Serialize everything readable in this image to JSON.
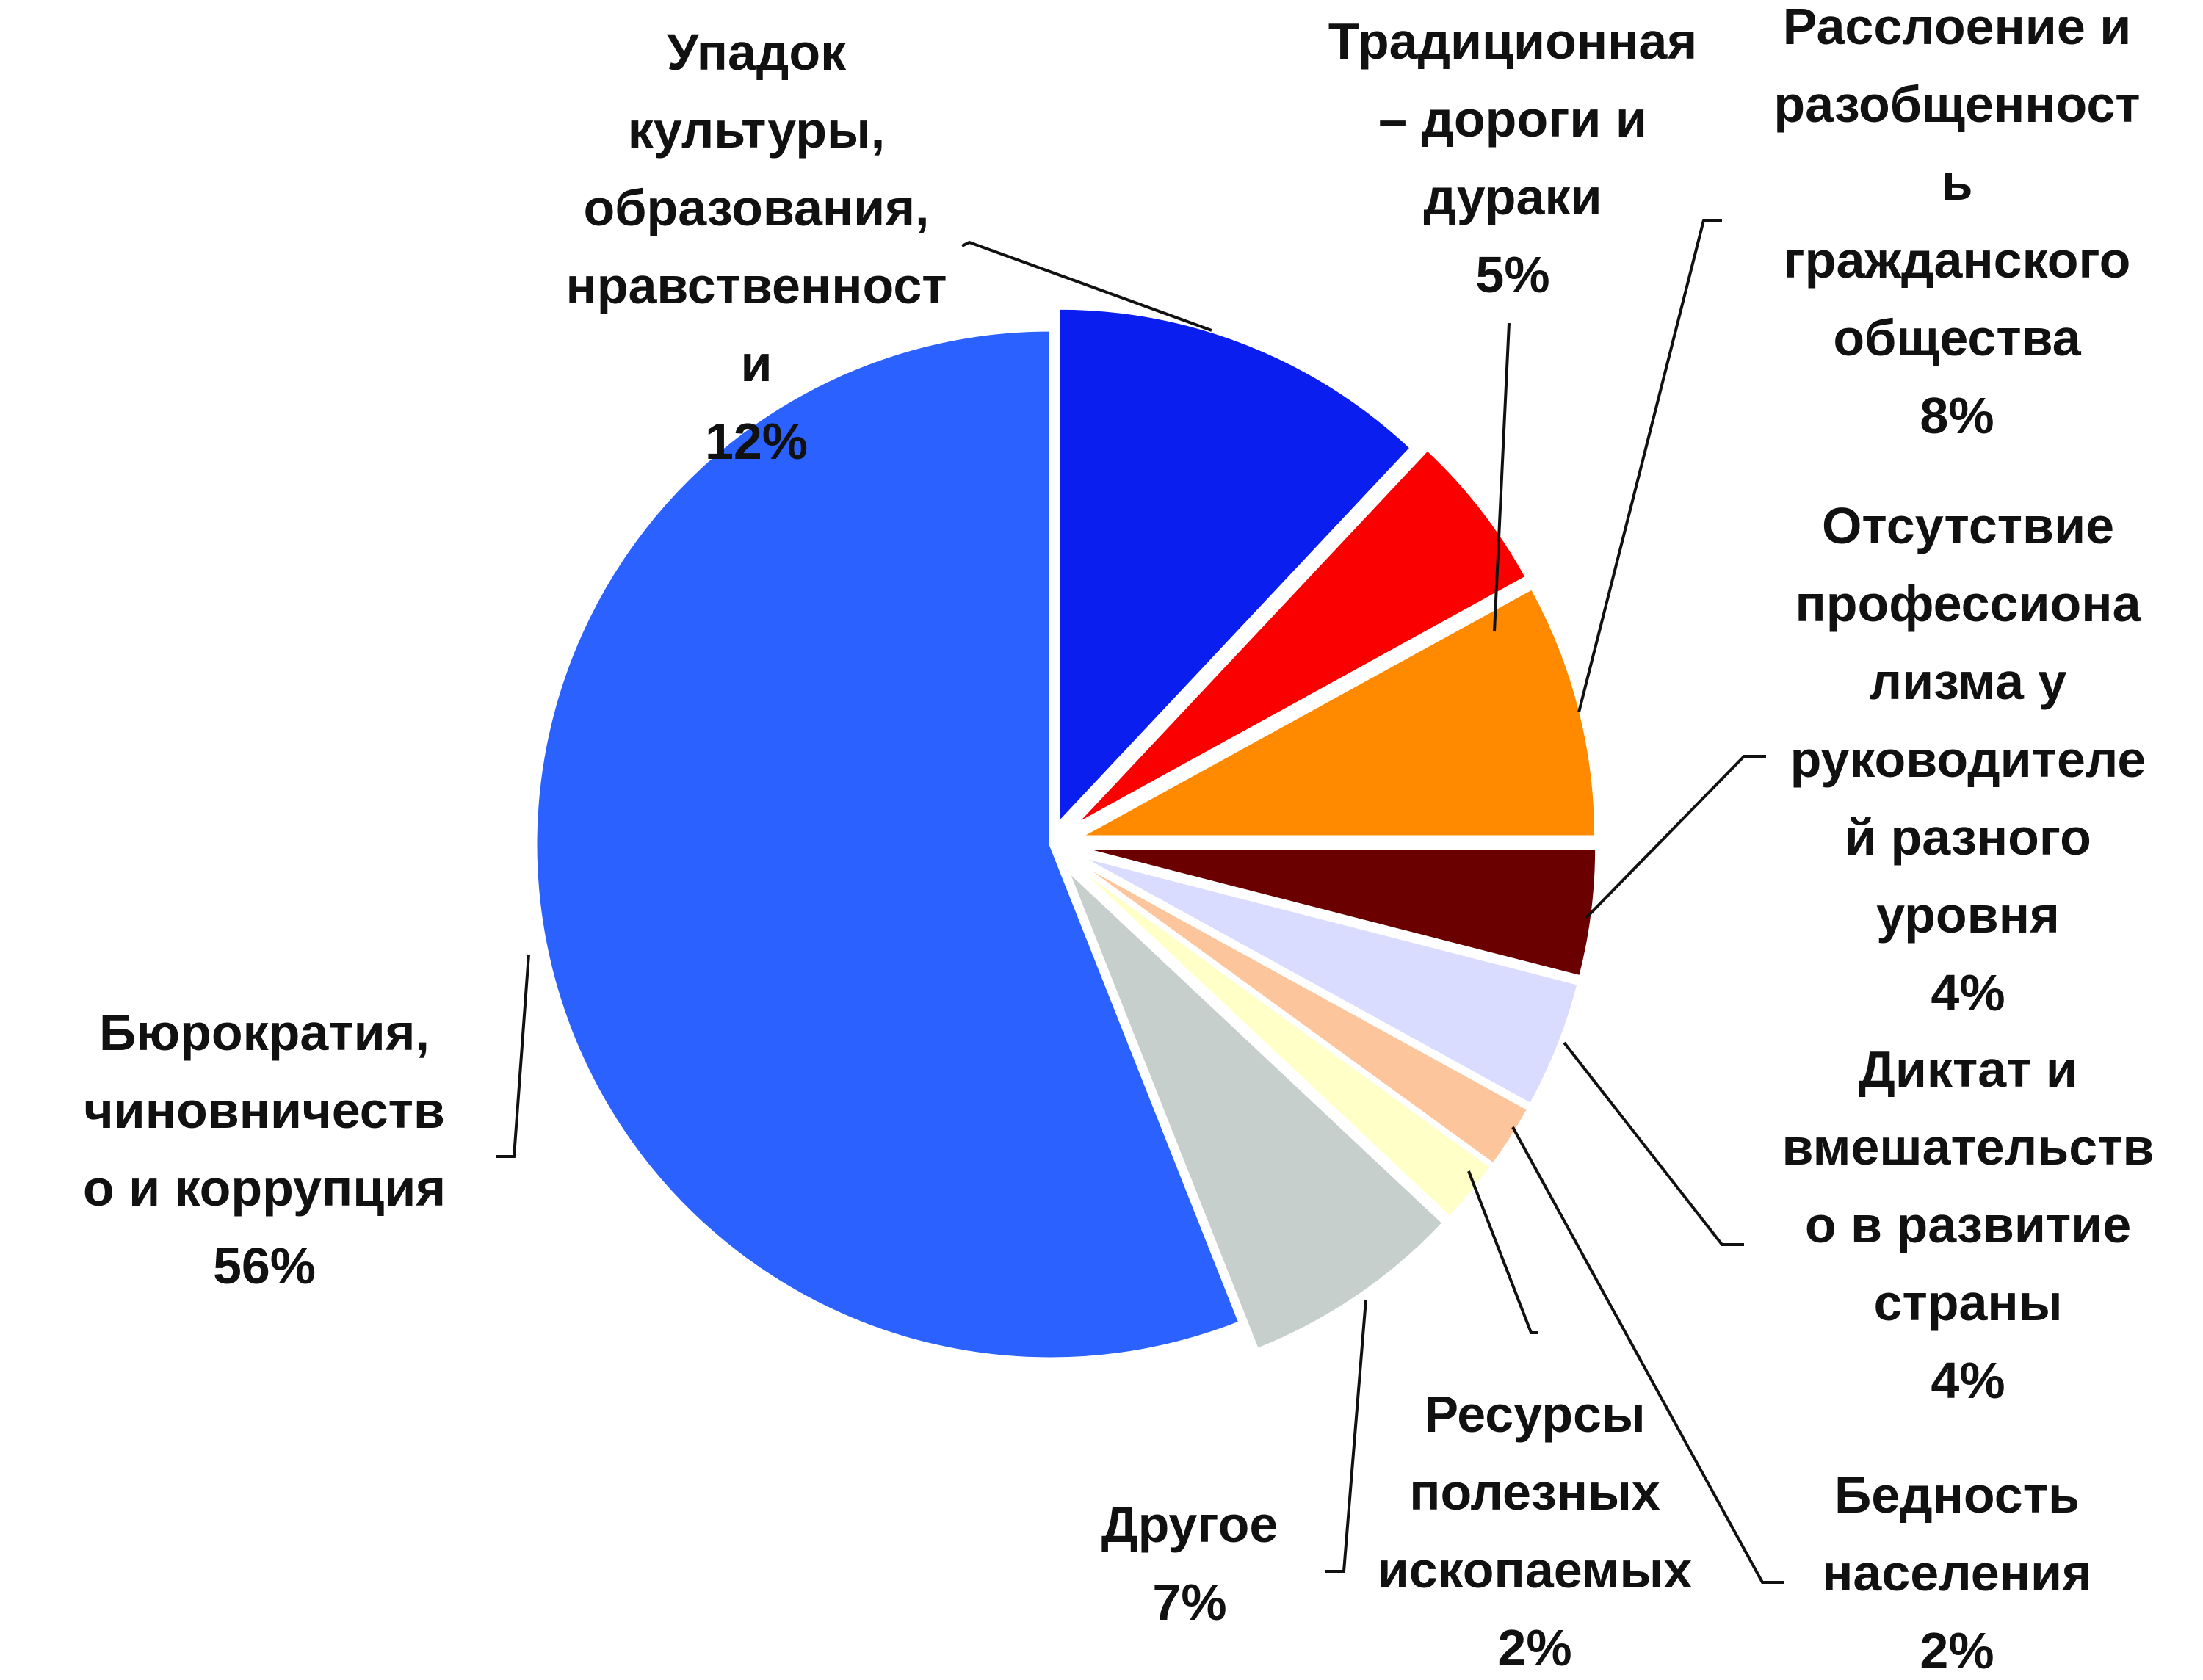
{
  "chart_data": {
    "type": "pie",
    "title": "",
    "legend": "none",
    "slices": [
      {
        "label": "Упадок культуры, образования, нравственности",
        "label_lines": [
          "Упадок",
          "культуры,",
          "образования,",
          "нравственност",
          "и"
        ],
        "value": 12,
        "value_label": "12%",
        "color": "#0a1ef0"
      },
      {
        "label": "Традиционная – дороги и дураки",
        "label_lines": [
          "Традиционная",
          "– дороги и",
          "дураки"
        ],
        "value": 5,
        "value_label": "5%",
        "color": "#fb0000"
      },
      {
        "label": "Расслоение и разобщенность гражданского общества",
        "label_lines": [
          "Расслоение и",
          "разобщенност",
          "ь",
          "гражданского",
          "общества"
        ],
        "value": 8,
        "value_label": "8%",
        "color": "#ff8a00"
      },
      {
        "label": "Отсутствие профессионализма у руководителей разного уровня",
        "label_lines": [
          "Отсутствие",
          "профессиона",
          "лизма у",
          "руководителе",
          "й разного",
          "уровня"
        ],
        "value": 4,
        "value_label": "4%",
        "color": "#6b0000"
      },
      {
        "label": "Диктат и вмешательство в развитие страны",
        "label_lines": [
          "Диктат и",
          "вмешательств",
          "о в развитие",
          "страны"
        ],
        "value": 4,
        "value_label": "4%",
        "color": "#d9dbff"
      },
      {
        "label": "Бедность населения",
        "label_lines": [
          "Бедность",
          "населения"
        ],
        "value": 2,
        "value_label": "2%",
        "color": "#fcc59c"
      },
      {
        "label": "Ресурсы полезных ископаемых",
        "label_lines": [
          "Ресурсы",
          "полезных",
          "ископаемых"
        ],
        "value": 2,
        "value_label": "2%",
        "color": "#ffffc8"
      },
      {
        "label": "Другое",
        "label_lines": [
          "Другое"
        ],
        "value": 7,
        "value_label": "7%",
        "color": "#c6cfcc"
      },
      {
        "label": "Бюрократия, чиновничество и коррупция",
        "label_lines": [
          "Бюрократия,",
          "чиновничеств",
          "о и коррупция"
        ],
        "value": 56,
        "value_label": "56%",
        "color": "#2b62ff"
      }
    ]
  }
}
